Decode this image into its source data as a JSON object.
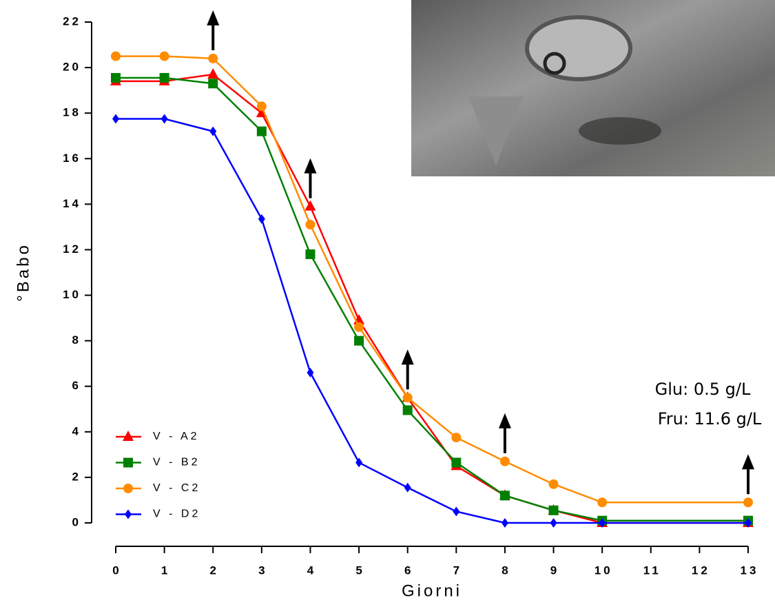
{
  "chart_data": {
    "type": "line",
    "xlabel": "Giorni",
    "ylabel": "°Babo",
    "x": [
      0,
      1,
      2,
      3,
      4,
      5,
      6,
      7,
      8,
      9,
      10,
      13
    ],
    "series": [
      {
        "name": "V - A2",
        "color": "#ff0000",
        "marker": "triangle",
        "values": [
          19.4,
          19.4,
          19.7,
          18.0,
          13.9,
          8.9,
          5.5,
          2.5,
          1.2,
          0.55,
          0,
          0
        ]
      },
      {
        "name": "V - B2",
        "color": "#008000",
        "marker": "square",
        "values": [
          19.55,
          19.55,
          19.3,
          17.2,
          11.8,
          8.0,
          4.95,
          2.65,
          1.2,
          0.55,
          0.1,
          0.1
        ]
      },
      {
        "name": "V - C2",
        "color": "#ff8c00",
        "marker": "circle",
        "values": [
          20.5,
          20.5,
          20.4,
          18.3,
          13.1,
          8.6,
          5.5,
          3.75,
          2.7,
          1.7,
          0.9,
          0.9
        ]
      },
      {
        "name": "V - D2",
        "color": "#0000ff",
        "marker": "diamond",
        "values": [
          17.75,
          17.75,
          17.2,
          13.35,
          6.6,
          2.65,
          1.55,
          0.5,
          0,
          0,
          0,
          0
        ]
      }
    ],
    "xlim": [
      0,
      13
    ],
    "xticks": [
      0,
      1,
      2,
      3,
      4,
      5,
      6,
      7,
      8,
      9,
      10,
      11,
      12,
      13
    ],
    "ylim": [
      0,
      22
    ],
    "yticks": [
      0,
      2,
      4,
      6,
      8,
      10,
      12,
      14,
      16,
      18,
      20,
      22
    ],
    "arrows_x": [
      2,
      4,
      6,
      8,
      13
    ],
    "annotations": [
      "Glu: 0.5 g/L",
      "Fru: 11.6 g/L"
    ],
    "legend": "lower left"
  }
}
